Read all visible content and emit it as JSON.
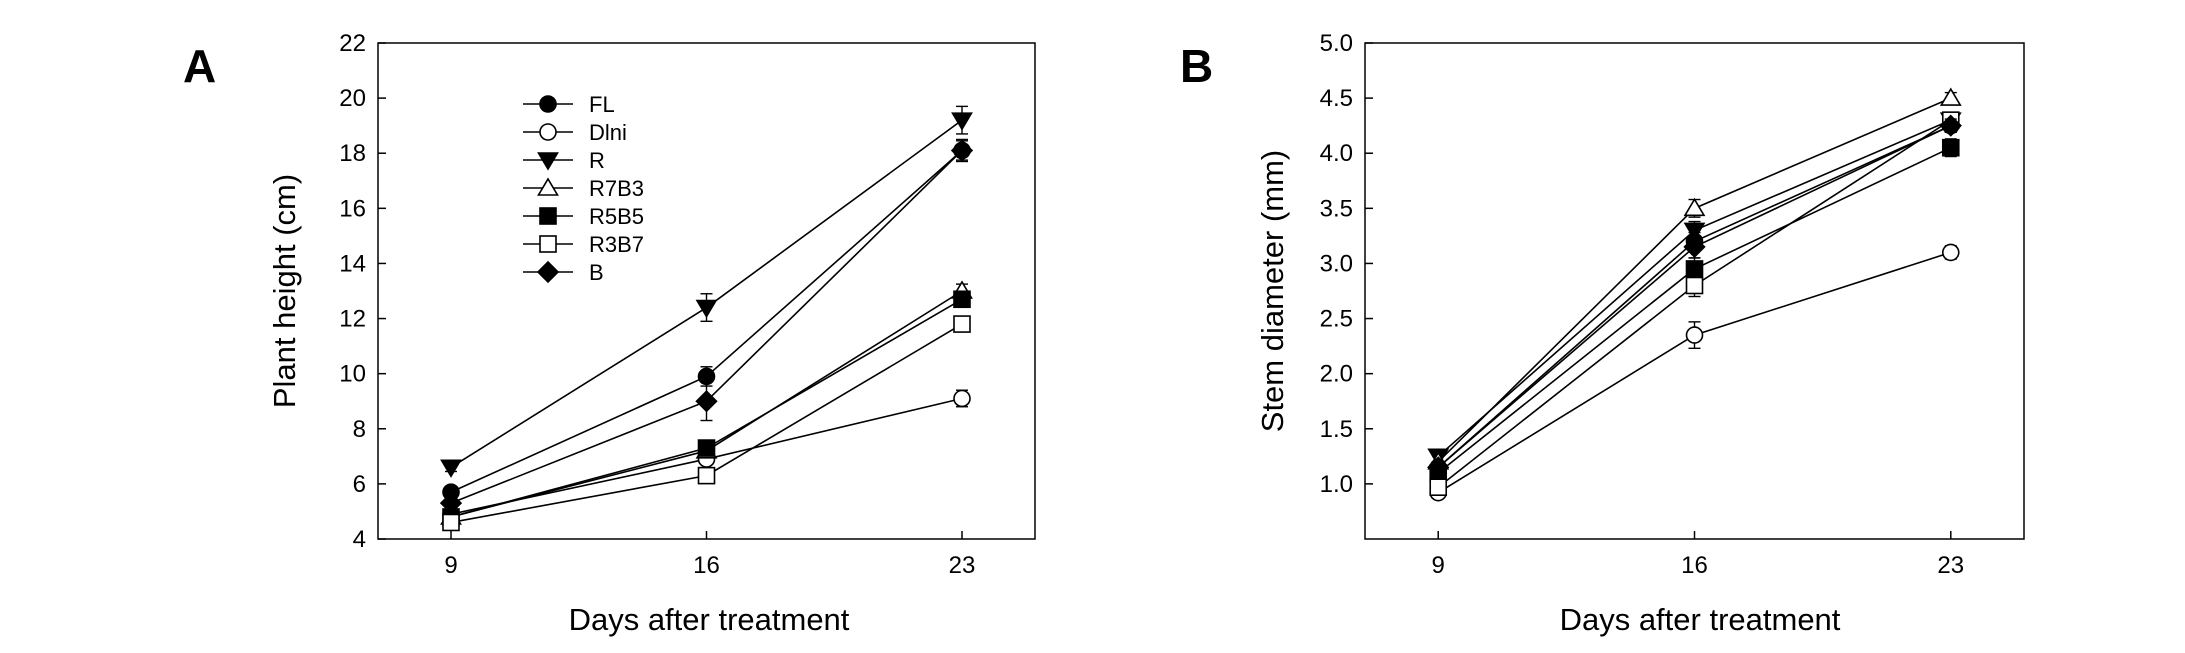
{
  "chart_data": [
    {
      "panel": "A",
      "type": "line",
      "title": "",
      "xlabel": "Days after treatment",
      "ylabel": "Plant height (cm)",
      "x": [
        9,
        16,
        23
      ],
      "xlim": [
        7,
        25
      ],
      "ylim": [
        4,
        22
      ],
      "yticks": [
        "4",
        "6",
        "8",
        "10",
        "12",
        "14",
        "16",
        "18",
        "20",
        "22"
      ],
      "ytick_values": [
        4,
        6,
        8,
        10,
        12,
        14,
        16,
        18,
        20,
        22
      ],
      "xticks": [
        "9",
        "16",
        "23"
      ],
      "legend_position": "top-left",
      "series": [
        {
          "name": "FL",
          "marker": "circle-filled",
          "values": [
            5.7,
            9.9,
            18.1
          ],
          "errors": [
            0.2,
            0.35,
            0.35
          ]
        },
        {
          "name": "Dlni",
          "marker": "circle-open",
          "values": [
            4.9,
            6.9,
            9.1
          ],
          "errors": [
            0.15,
            0.2,
            0.3
          ]
        },
        {
          "name": "R",
          "marker": "triangle-down-filled",
          "values": [
            6.6,
            12.4,
            19.2
          ],
          "errors": [
            0.15,
            0.5,
            0.5
          ]
        },
        {
          "name": "R7B3",
          "marker": "triangle-up-open",
          "values": [
            4.8,
            7.2,
            13.0
          ],
          "errors": [
            0.1,
            0.2,
            0.25
          ]
        },
        {
          "name": "R5B5",
          "marker": "square-filled",
          "values": [
            4.8,
            7.3,
            12.7
          ],
          "errors": [
            0.1,
            0.2,
            0.25
          ]
        },
        {
          "name": "R3B7",
          "marker": "square-open",
          "values": [
            4.6,
            6.3,
            11.8
          ],
          "errors": [
            0.1,
            0.2,
            0.25
          ]
        },
        {
          "name": "B",
          "marker": "diamond-filled",
          "values": [
            5.3,
            9.0,
            18.1
          ],
          "errors": [
            0.2,
            0.7,
            0.4
          ]
        }
      ]
    },
    {
      "panel": "B",
      "type": "line",
      "title": "",
      "xlabel": "Days after treatment",
      "ylabel": "Stem diameter (mm)",
      "x": [
        9,
        16,
        23
      ],
      "xlim": [
        7,
        25
      ],
      "ylim": [
        0.5,
        5.0
      ],
      "yticks": [
        "1.0",
        "1.5",
        "2.0",
        "2.5",
        "3.0",
        "3.5",
        "4.0",
        "4.5",
        "5.0"
      ],
      "ytick_values": [
        1.0,
        1.5,
        2.0,
        2.5,
        3.0,
        3.5,
        4.0,
        4.5,
        5.0
      ],
      "xticks": [
        "9",
        "16",
        "23"
      ],
      "series": [
        {
          "name": "FL",
          "marker": "circle-filled",
          "values": [
            1.15,
            3.2,
            4.25
          ],
          "errors": [
            0.05,
            0.08,
            0.06
          ]
        },
        {
          "name": "Dlni",
          "marker": "circle-open",
          "values": [
            0.92,
            2.35,
            3.1
          ],
          "errors": [
            0.04,
            0.12,
            0.06
          ]
        },
        {
          "name": "R",
          "marker": "triangle-down-filled",
          "values": [
            1.25,
            3.3,
            4.3
          ],
          "errors": [
            0.05,
            0.08,
            0.06
          ]
        },
        {
          "name": "R7B3",
          "marker": "triangle-up-open",
          "values": [
            1.2,
            3.5,
            4.5
          ],
          "errors": [
            0.05,
            0.08,
            0.05
          ]
        },
        {
          "name": "R5B5",
          "marker": "square-filled",
          "values": [
            1.1,
            2.95,
            4.05
          ],
          "errors": [
            0.05,
            0.1,
            0.08
          ]
        },
        {
          "name": "R3B7",
          "marker": "square-open",
          "values": [
            0.97,
            2.8,
            4.3
          ],
          "errors": [
            0.05,
            0.1,
            0.06
          ]
        },
        {
          "name": "B",
          "marker": "diamond-filled",
          "values": [
            1.15,
            3.15,
            4.25
          ],
          "errors": [
            0.05,
            0.1,
            0.06
          ]
        }
      ]
    }
  ]
}
